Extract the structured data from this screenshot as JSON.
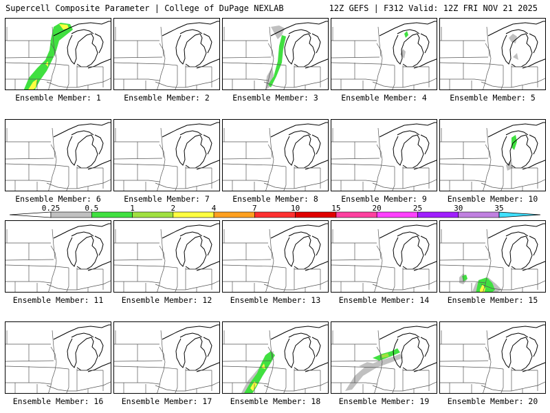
{
  "header": {
    "title": "Supercell Composite Parameter | College of DuPage NEXLAB",
    "run_info": "12Z GEFS | F312 Valid: 12Z FRI NOV 21 2025"
  },
  "member_label_prefix": "Ensemble Member: ",
  "members": [
    {
      "label": "Ensemble Member: 1",
      "id": 1
    },
    {
      "label": "Ensemble Member: 2",
      "id": 2
    },
    {
      "label": "Ensemble Member: 3",
      "id": 3
    },
    {
      "label": "Ensemble Member: 4",
      "id": 4
    },
    {
      "label": "Ensemble Member: 5",
      "id": 5
    },
    {
      "label": "Ensemble Member: 6",
      "id": 6
    },
    {
      "label": "Ensemble Member: 7",
      "id": 7
    },
    {
      "label": "Ensemble Member: 8",
      "id": 8
    },
    {
      "label": "Ensemble Member: 9",
      "id": 9
    },
    {
      "label": "Ensemble Member: 10",
      "id": 10
    },
    {
      "label": "Ensemble Member: 11",
      "id": 11
    },
    {
      "label": "Ensemble Member: 12",
      "id": 12
    },
    {
      "label": "Ensemble Member: 13",
      "id": 13
    },
    {
      "label": "Ensemble Member: 14",
      "id": 14
    },
    {
      "label": "Ensemble Member: 15",
      "id": 15
    },
    {
      "label": "Ensemble Member: 16",
      "id": 16
    },
    {
      "label": "Ensemble Member: 17",
      "id": 17
    },
    {
      "label": "Ensemble Member: 18",
      "id": 18
    },
    {
      "label": "Ensemble Member: 19",
      "id": 19
    },
    {
      "label": "Ensemble Member: 20",
      "id": 20
    }
  ],
  "colorbar": {
    "levels": [
      "0.25",
      "0.5",
      "1",
      "2",
      "4",
      "7",
      "10",
      "15",
      "20",
      "25",
      "30",
      "35"
    ],
    "colors": [
      "#c0c0c0",
      "#40e040",
      "#a0e040",
      "#ffff40",
      "#ffa020",
      "#ff3030",
      "#e00000",
      "#ff40a0",
      "#ff40ff",
      "#a020ff",
      "#c080e0",
      "#40e0ff"
    ]
  }
}
